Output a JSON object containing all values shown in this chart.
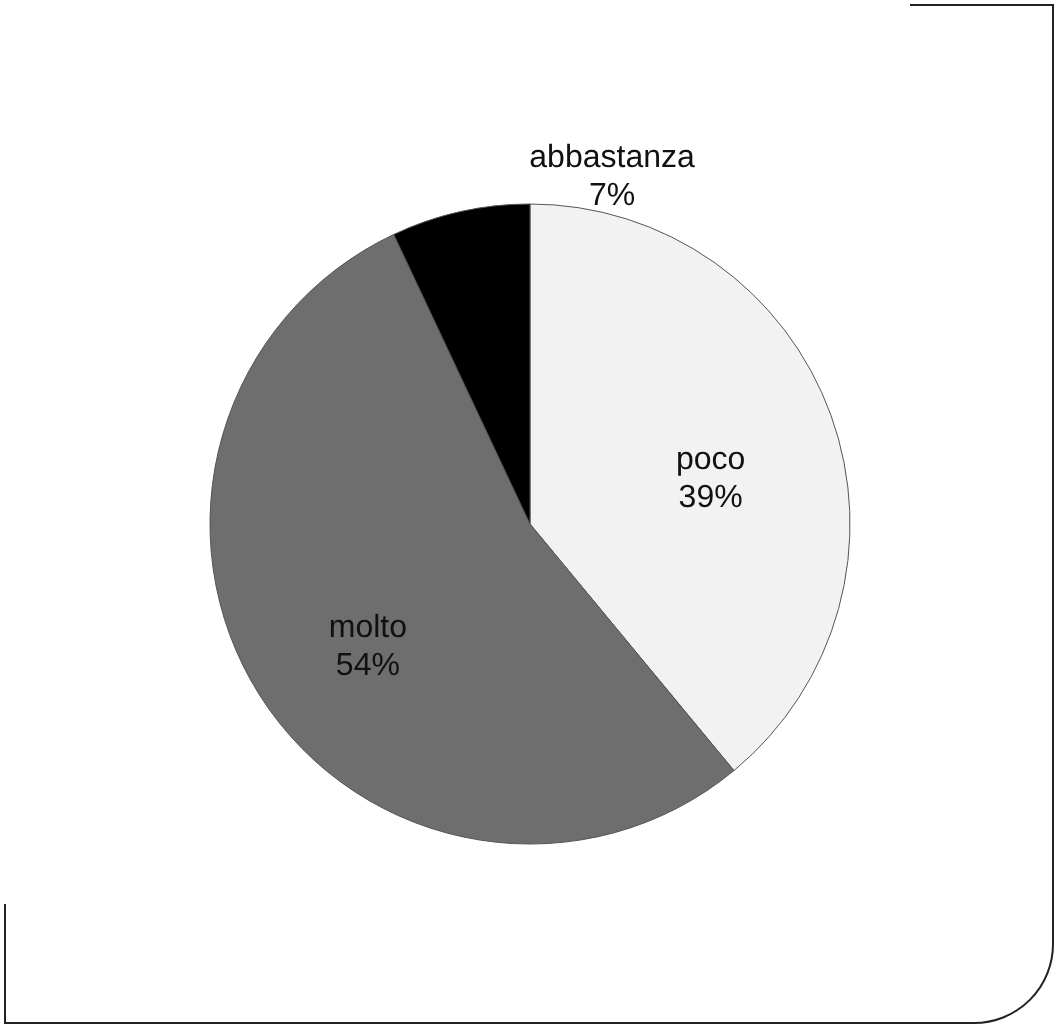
{
  "chart_data": {
    "type": "pie",
    "categories": [
      "poco",
      "molto",
      "abbastanza"
    ],
    "values": [
      39,
      54,
      7
    ],
    "colors": [
      "#f2f2f2",
      "#6e6e6e",
      "#000000"
    ],
    "value_labels": [
      "39%",
      "54%",
      "7%"
    ]
  }
}
